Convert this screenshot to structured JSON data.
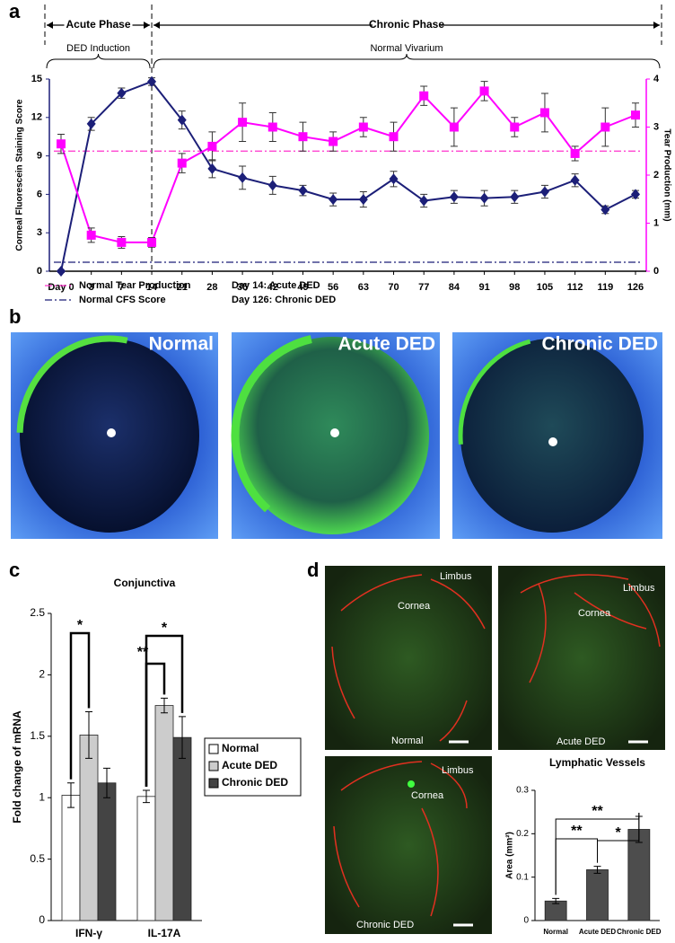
{
  "chart_data": [
    {
      "panel": "a",
      "type": "line",
      "phases": [
        {
          "label": "Acute Phase",
          "subphase": "DED Induction"
        },
        {
          "label": "Chronic Phase",
          "subphase": "Normal Vivarium"
        }
      ],
      "categories": [
        "Day 0",
        "3",
        "7",
        "14",
        "21",
        "28",
        "35",
        "42",
        "49",
        "56",
        "63",
        "70",
        "77",
        "84",
        "91",
        "98",
        "105",
        "112",
        "119",
        "126"
      ],
      "ylabel": "Corneal Fluorescein Staining Score",
      "y2label": "Tear Production (mm)",
      "ylim": [
        0,
        15
      ],
      "yticks": [
        0,
        3,
        6,
        9,
        12,
        15
      ],
      "y2lim": [
        0,
        4
      ],
      "y2ticks": [
        0,
        1,
        2,
        3,
        4
      ],
      "series": [
        {
          "color": "#1c1f78",
          "marker": "diamond",
          "values": [
            0,
            11.5,
            13.9,
            14.8,
            11.8,
            8.0,
            7.3,
            6.7,
            6.3,
            5.6,
            5.6,
            7.2,
            5.5,
            5.8,
            5.7,
            5.8,
            6.2,
            7.1,
            4.8,
            6.0
          ],
          "errors": [
            0.1,
            0.5,
            0.4,
            0.3,
            0.7,
            0.7,
            0.9,
            0.7,
            0.4,
            0.5,
            0.6,
            0.6,
            0.5,
            0.5,
            0.6,
            0.5,
            0.5,
            0.5,
            0.3,
            0.3
          ]
        },
        {
          "axis": "y2",
          "color": "#ff00ff",
          "marker": "square",
          "values": [
            2.65,
            0.75,
            0.6,
            0.6,
            2.25,
            2.6,
            3.1,
            3.0,
            2.8,
            2.7,
            3.0,
            2.8,
            3.65,
            3.0,
            3.75,
            3.0,
            3.3,
            2.45,
            3.0,
            3.25
          ],
          "errors": [
            0.2,
            0.15,
            0.12,
            0.1,
            0.2,
            0.3,
            0.4,
            0.3,
            0.3,
            0.2,
            0.2,
            0.3,
            0.2,
            0.4,
            0.2,
            0.2,
            0.4,
            0.15,
            0.4,
            0.25
          ]
        }
      ],
      "reference_lines": [
        {
          "name": "Normal Tear Production",
          "value": 2.5,
          "axis": "y2",
          "color": "#ff33cc"
        },
        {
          "name": "Normal CFS Score",
          "value": 0.7,
          "axis": "y",
          "color": "#1c1f78"
        }
      ],
      "notes": [
        "Day 14: Acute DED",
        "Day 126: Chronic DED"
      ]
    },
    {
      "panel": "c",
      "type": "bar",
      "title": "Conjunctiva",
      "ylabel": "Fold change of mRNA",
      "categories": [
        "IFN-γ",
        "IL-17A"
      ],
      "ylim": [
        0,
        2.5
      ],
      "yticks": [
        0,
        0.5,
        1,
        1.5,
        2,
        2.5
      ],
      "series": [
        {
          "name": "Normal",
          "color": "#ffffff",
          "values": [
            1.02,
            1.01
          ],
          "errors": [
            0.1,
            0.05
          ]
        },
        {
          "name": "Acute DED",
          "color": "#cccccc",
          "values": [
            1.51,
            1.75
          ],
          "errors": [
            0.19,
            0.06
          ]
        },
        {
          "name": "Chronic DED",
          "color": "#444444",
          "values": [
            1.12,
            1.49
          ],
          "errors": [
            0.12,
            0.17
          ]
        }
      ],
      "significance": [
        "*",
        "**",
        "*"
      ],
      "legend": "right"
    },
    {
      "panel": "d",
      "type": "bar",
      "title": "Lymphatic Vessels",
      "ylabel": "Area (mm²)",
      "categories": [
        "Normal",
        "Acute DED",
        "Chronic DED"
      ],
      "values": [
        0.045,
        0.117,
        0.21
      ],
      "errors": [
        0.006,
        0.008,
        0.03
      ],
      "color": "#4d4d4d",
      "ylim": [
        0,
        0.3
      ],
      "yticks": [
        0,
        0.1,
        0.2,
        0.3
      ],
      "significance": [
        "**",
        "**",
        "*"
      ]
    }
  ],
  "photos": {
    "panel": "b",
    "labels": [
      "Normal",
      "Acute DED",
      "Chronic DED"
    ]
  },
  "micrographs": {
    "images": [
      {
        "limbus": "Limbus",
        "cornea": "Cornea",
        "label": "Normal"
      },
      {
        "limbus": "Limbus",
        "cornea": "Cornea",
        "label": "Acute DED"
      },
      {
        "limbus": "Limbus",
        "cornea": "Cornea",
        "label": "Chronic DED"
      }
    ]
  }
}
